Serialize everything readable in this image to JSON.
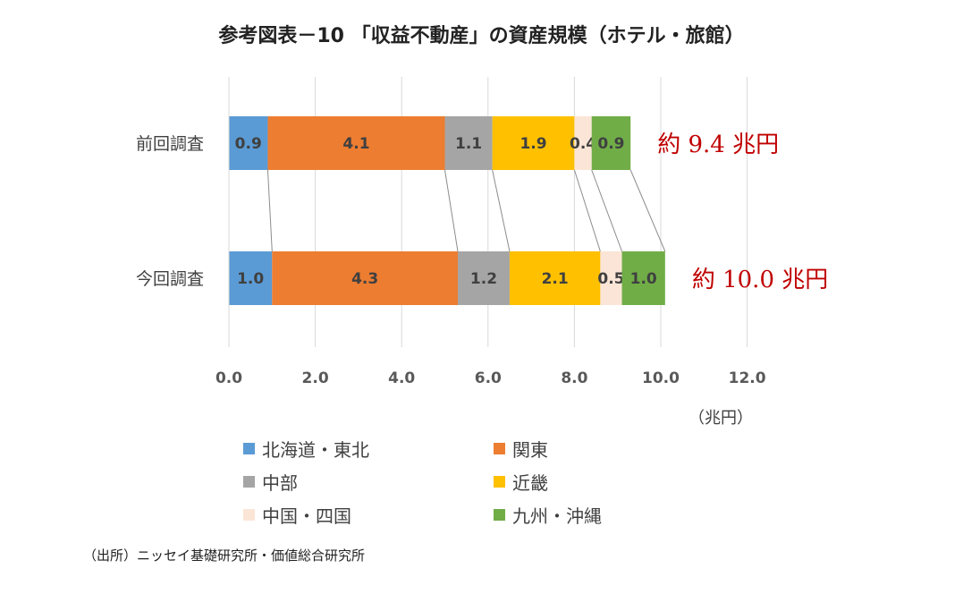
{
  "title": "参考図表－10 「収益不動産」の資産規模（ホテル・旅館）",
  "unit_label": "（兆円）",
  "source": "（出所）ニッセイ基礎研究所・価値総合研究所",
  "colors": {
    "hokkaido_tohoku": "#5b9bd5",
    "kanto": "#ed7d31",
    "chubu": "#a5a5a5",
    "kinki": "#ffc000",
    "chugoku_shikoku": "#fbe5d6",
    "kyushu_okinawa": "#70ad47",
    "total_text": "#c00000"
  },
  "chart_data": {
    "type": "bar",
    "orientation": "horizontal",
    "stacked": true,
    "categories": [
      "前回調査",
      "今回調査"
    ],
    "series": [
      {
        "name": "北海道・東北",
        "values": [
          0.9,
          1.0
        ],
        "labels": [
          "0.9",
          "1.0"
        ]
      },
      {
        "name": "関東",
        "values": [
          4.1,
          4.3
        ],
        "labels": [
          "4.1",
          "4.3"
        ]
      },
      {
        "name": "中部",
        "values": [
          1.1,
          1.2
        ],
        "labels": [
          "1.1",
          "1.2"
        ]
      },
      {
        "name": "近畿",
        "values": [
          1.9,
          2.1
        ],
        "labels": [
          "1.9",
          "2.1"
        ]
      },
      {
        "name": "中国・四国",
        "values": [
          0.4,
          0.5
        ],
        "labels": [
          "0.4",
          "0.5"
        ]
      },
      {
        "name": "九州・沖縄",
        "values": [
          0.9,
          1.0
        ],
        "labels": [
          "0.9",
          "1.0"
        ]
      }
    ],
    "totals": [
      "約 9.4 兆円",
      "約 10.0 兆円"
    ],
    "xlim": [
      0,
      12
    ],
    "x_ticks": [
      "0.0",
      "2.0",
      "4.0",
      "6.0",
      "8.0",
      "10.0",
      "12.0"
    ],
    "grid": true,
    "legend_position": "bottom",
    "series_connector_lines": true
  }
}
